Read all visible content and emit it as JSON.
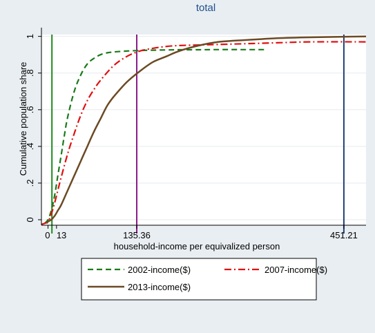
{
  "chart_data": {
    "type": "line",
    "title": "total",
    "xlabel": "household-income per equivalized person",
    "ylabel": "Cumulative population share",
    "xlim": [
      -10,
      485
    ],
    "ylim": [
      -0.03,
      1.01
    ],
    "y_ticks": [
      {
        "value": 0,
        "label": "0"
      },
      {
        "value": 0.2,
        "label": ".2"
      },
      {
        "value": 0.4,
        "label": ".4"
      },
      {
        "value": 0.6,
        "label": ".6"
      },
      {
        "value": 0.8,
        "label": ".8"
      },
      {
        "value": 1,
        "label": "1"
      }
    ],
    "x_ticks": [
      {
        "value": 0,
        "label": "0"
      },
      {
        "value": 13,
        "label": "13"
      },
      {
        "value": 135.36,
        "label": "135.36"
      },
      {
        "value": 451.21,
        "label": "451.21"
      }
    ],
    "reference_lines": [
      {
        "x": 6,
        "color": "#1a8c1a"
      },
      {
        "x": 135.36,
        "color": "#8b1a8b"
      },
      {
        "x": 451.21,
        "color": "#1f3f7a"
      }
    ],
    "grid": true,
    "legend_position": "bottom",
    "series": [
      {
        "name": "2002-income($)",
        "color": "#1a7a1a",
        "dash": "dashed",
        "x": [
          -5,
          0,
          5,
          10,
          15,
          20,
          25,
          30,
          40,
          50,
          60,
          70,
          80,
          90,
          100,
          120,
          140,
          160,
          180,
          200,
          230,
          260,
          300,
          330
        ],
        "y": [
          -0.02,
          0.0,
          0.05,
          0.13,
          0.24,
          0.35,
          0.46,
          0.56,
          0.7,
          0.79,
          0.85,
          0.88,
          0.9,
          0.91,
          0.915,
          0.92,
          0.923,
          0.925,
          0.926,
          0.927,
          0.927,
          0.928,
          0.928,
          0.928
        ]
      },
      {
        "name": "2007-income($)",
        "color": "#e01010",
        "dash": "dashdot",
        "x": [
          -10,
          -5,
          0,
          5,
          10,
          15,
          20,
          30,
          40,
          50,
          60,
          70,
          80,
          100,
          120,
          140,
          160,
          180,
          200,
          250,
          300,
          350,
          400,
          485
        ],
        "y": [
          -0.025,
          -0.02,
          -0.01,
          0.03,
          0.09,
          0.16,
          0.23,
          0.36,
          0.47,
          0.57,
          0.65,
          0.71,
          0.76,
          0.84,
          0.89,
          0.92,
          0.935,
          0.945,
          0.95,
          0.955,
          0.96,
          0.965,
          0.97,
          0.97
        ]
      },
      {
        "name": "2013-income($)",
        "color": "#6b4a24",
        "dash": "solid",
        "x": [
          -2,
          0,
          5,
          10,
          15,
          20,
          30,
          40,
          50,
          60,
          70,
          80,
          90,
          100,
          120,
          140,
          160,
          180,
          200,
          230,
          260,
          300,
          350,
          400,
          485
        ],
        "y": [
          -0.02,
          -0.01,
          0.0,
          0.02,
          0.05,
          0.08,
          0.16,
          0.24,
          0.32,
          0.4,
          0.48,
          0.55,
          0.62,
          0.67,
          0.75,
          0.81,
          0.86,
          0.89,
          0.92,
          0.95,
          0.97,
          0.98,
          0.99,
          0.995,
          1.0
        ]
      }
    ]
  }
}
